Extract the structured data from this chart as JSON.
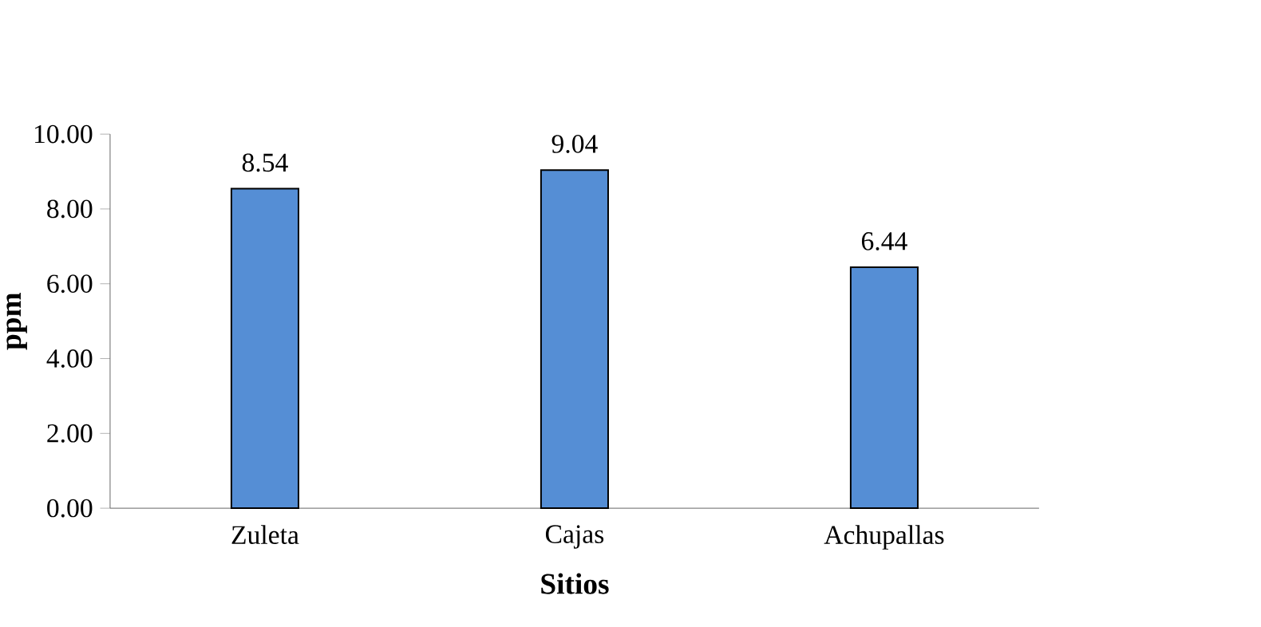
{
  "chart_data": {
    "type": "bar",
    "xlabel": "Sitios",
    "ylabel": "ppm",
    "categories": [
      "Zuleta",
      "Cajas",
      "Achupallas"
    ],
    "values": [
      8.54,
      9.04,
      6.44
    ],
    "value_labels": [
      "8.54",
      "9.04",
      "6.44"
    ],
    "color": "#558ed5",
    "ylim": [
      0,
      10
    ],
    "yticks": [
      {
        "value": 0,
        "label": "0.00"
      },
      {
        "value": 2,
        "label": "2.00"
      },
      {
        "value": 4,
        "label": "4.00"
      },
      {
        "value": 6,
        "label": "6.00"
      },
      {
        "value": 8,
        "label": "8.00"
      },
      {
        "value": 10,
        "label": "10.00"
      }
    ],
    "grid": false
  }
}
